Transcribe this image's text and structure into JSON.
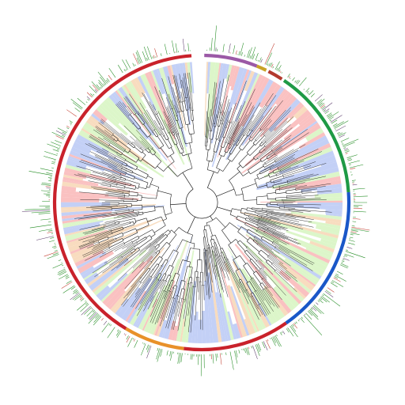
{
  "figure": {
    "type": "circular-phylogenetic-tree",
    "background": "#ffffff",
    "gap_at_top": true
  },
  "colors": {
    "band_pink": "#f9b6b6",
    "band_blue": "#b9c8f5",
    "band_green": "#d6f4bf",
    "band_peach": "#f7d6b4",
    "branch": "#1e1e1e",
    "bar_green": "#1f8a1f",
    "bar_red": "#c0392b",
    "bar_dark": "#5a3a6a"
  },
  "clade_ring": [
    {
      "name": "",
      "color": "#9b59a6",
      "start_deg": 1,
      "end_deg": 22
    },
    {
      "name": "",
      "color": "#c9a227",
      "start_deg": 22,
      "end_deg": 26
    },
    {
      "name": "",
      "color": "#b33b2e",
      "start_deg": 27,
      "end_deg": 33
    },
    {
      "name": "",
      "color": "#1e9a45",
      "start_deg": 34,
      "end_deg": 86
    },
    {
      "name": "",
      "color": "#1a57c8",
      "start_deg": 86,
      "end_deg": 145
    },
    {
      "name": "",
      "color": "#c9222b",
      "start_deg": 145,
      "end_deg": 187
    },
    {
      "name": "",
      "color": "#e8912a",
      "start_deg": 187,
      "end_deg": 211
    },
    {
      "name": "",
      "color": "#c9222b",
      "start_deg": 211,
      "end_deg": 356
    }
  ],
  "band_sectors": [
    {
      "color_key": "band_pink",
      "start_deg": 270,
      "end_deg": 286
    },
    {
      "color_key": "band_blue",
      "start_deg": 286,
      "end_deg": 300
    },
    {
      "color_key": "band_pink",
      "start_deg": 20,
      "end_deg": 60
    },
    {
      "color_key": "band_blue",
      "start_deg": 60,
      "end_deg": 96
    },
    {
      "color_key": "band_blue",
      "start_deg": 160,
      "end_deg": 180
    },
    {
      "color_key": "band_green",
      "start_deg": 100,
      "end_deg": 150
    }
  ]
}
